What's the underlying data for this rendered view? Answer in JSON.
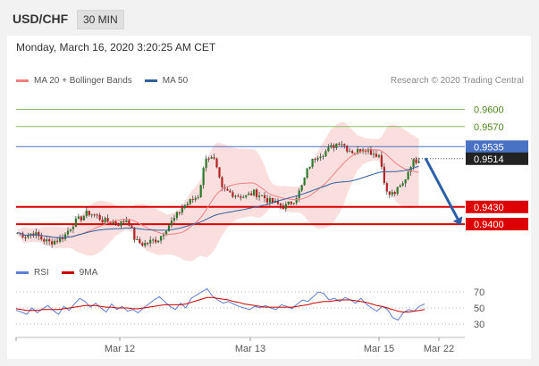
{
  "header": {
    "pair": "USD/CHF",
    "timeframe": "30 MIN"
  },
  "timestamp": "Monday, March 16, 2020 3:20:25 AM CET",
  "credit": "Research © 2020 Trading Central",
  "legend_main": [
    {
      "label": "MA 20 + Bollinger Bands",
      "color": "#f08080"
    },
    {
      "label": "MA 50",
      "color": "#3060a0"
    }
  ],
  "legend_rsi": [
    {
      "label": "RSI",
      "color": "#5b7fd6"
    },
    {
      "label": "9MA",
      "color": "#cc0000"
    }
  ],
  "colors": {
    "up": "#2c7a2c",
    "down": "#b22222",
    "resistance": "#8cbd5a",
    "support": "#dd0000",
    "current": "#4a72c4",
    "arrow": "#2a5fa8",
    "band": "#f8c8c8"
  },
  "chart_data": [
    {
      "type": "candlestick",
      "x_ticks": [
        "Mar 12",
        "Mar 13",
        "Mar 15",
        "Mar 22"
      ],
      "ylim": [
        0.9355,
        0.9635
      ],
      "levels": [
        {
          "value": 0.96,
          "label": "0.9600",
          "kind": "resistance"
        },
        {
          "value": 0.957,
          "label": "0.9570",
          "kind": "resistance"
        },
        {
          "value": 0.9535,
          "label": "0.9535",
          "kind": "resistance"
        },
        {
          "value": 0.9514,
          "label": "0.9514",
          "kind": "current"
        },
        {
          "value": 0.943,
          "label": "0.9430",
          "kind": "support"
        },
        {
          "value": 0.94,
          "label": "0.9400",
          "kind": "support"
        }
      ],
      "forecast": {
        "from": 0.9515,
        "to": 0.94
      },
      "key_points": [
        0.9385,
        0.938,
        0.9385,
        0.9375,
        0.9368,
        0.9372,
        0.938,
        0.94,
        0.941,
        0.942,
        0.9415,
        0.9405,
        0.9405,
        0.94,
        0.941,
        0.937,
        0.9365,
        0.937,
        0.9375,
        0.9395,
        0.941,
        0.943,
        0.944,
        0.945,
        0.952,
        0.951,
        0.946,
        0.9455,
        0.945,
        0.9448,
        0.9455,
        0.945,
        0.944,
        0.9435,
        0.943,
        0.944,
        0.946,
        0.95,
        0.952,
        0.9525,
        0.9535,
        0.9545,
        0.953,
        0.9525,
        0.9535,
        0.9525,
        0.952,
        0.945,
        0.9455,
        0.947,
        0.9505,
        0.9515
      ]
    },
    {
      "type": "line",
      "name": "RSI panel",
      "ylim": [
        20,
        80
      ],
      "y_ticks": [
        70,
        50,
        30
      ],
      "series": [
        {
          "name": "RSI",
          "values": [
            47,
            45,
            42,
            50,
            44,
            49,
            53,
            47,
            42,
            52,
            47,
            55,
            62,
            58,
            51,
            56,
            50,
            45,
            55,
            48,
            52,
            46,
            48,
            44,
            50,
            55,
            60,
            64,
            58,
            52,
            48,
            56,
            50,
            62,
            66,
            70,
            74,
            65,
            60,
            56,
            58,
            55,
            52,
            50,
            48,
            52,
            50,
            53,
            50,
            48,
            54,
            52,
            49,
            55,
            60,
            58,
            64,
            70,
            68,
            60,
            62,
            58,
            63,
            60,
            56,
            62,
            55,
            50,
            46,
            52,
            48,
            38,
            35,
            44,
            48,
            46,
            52,
            55
          ]
        },
        {
          "name": "9MA",
          "values": [
            49,
            48,
            47,
            47,
            47,
            48,
            48,
            48,
            48,
            49,
            50,
            51,
            52,
            53,
            53,
            53,
            52,
            51,
            51,
            50,
            50,
            50,
            49,
            49,
            50,
            51,
            52,
            53,
            54,
            54,
            54,
            54,
            55,
            57,
            59,
            61,
            63,
            63,
            62,
            61,
            60,
            58,
            57,
            55,
            54,
            53,
            52,
            51,
            51,
            51,
            51,
            51,
            51,
            52,
            53,
            54,
            56,
            57,
            58,
            58,
            59,
            60,
            60,
            60,
            59,
            58,
            57,
            55,
            53,
            52,
            50,
            48,
            46,
            45,
            45,
            46,
            47,
            48
          ]
        }
      ]
    }
  ]
}
